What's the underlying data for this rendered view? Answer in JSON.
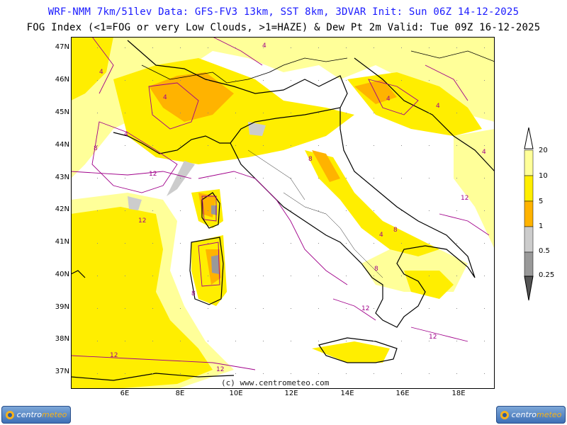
{
  "header": {
    "line1": "WRF-NMM 7km/51lev  Data: GFS-FV3 13km, SST 8km, 3DVAR  Init: Sun 06Z 14-12-2025",
    "line2": "FOG Index (<1=FOG or very Low Clouds, >1=HAZE) & Dew Pt 2m  Valid: Tue 09Z 16-12-2025"
  },
  "map": {
    "lat_labels": [
      "47N",
      "46N",
      "45N",
      "44N",
      "43N",
      "42N",
      "41N",
      "40N",
      "39N",
      "38N",
      "37N"
    ],
    "lon_labels": [
      "6E",
      "8E",
      "10E",
      "12E",
      "14E",
      "16E",
      "18E"
    ],
    "credit": "(c) www.centrometeo.com",
    "contour_labels": [
      "4",
      "4",
      "4",
      "4",
      "4",
      "4",
      "4",
      "8",
      "8",
      "8",
      "8",
      "12",
      "12",
      "12",
      "12",
      "12",
      "12",
      "12",
      "8",
      "4"
    ]
  },
  "legend": {
    "levels": [
      "20",
      "10",
      "5",
      "1",
      "0.5",
      "0.25"
    ],
    "colors": {
      "c20": "#ffff99",
      "c10": "#ffee00",
      "c5": "#ffb300",
      "c1": "#cccccc",
      "c05": "#999999",
      "c025": "#555555"
    }
  },
  "logos": {
    "left": {
      "main": "centro",
      "accent": "meteo"
    },
    "right": {
      "main": "centro",
      "accent": "meteo"
    }
  }
}
